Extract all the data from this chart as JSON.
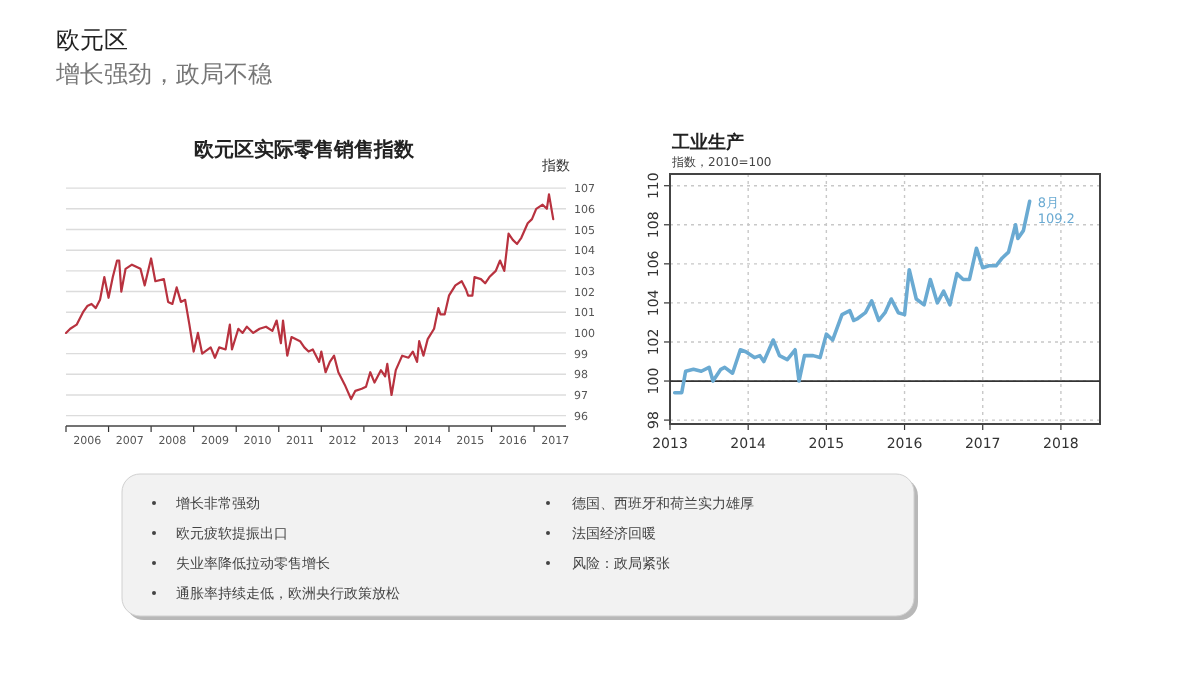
{
  "chart_data": [
    {
      "type": "line",
      "title": "欧元区实际零售销售指数",
      "ylabel": "指数",
      "grid": "y",
      "xlim": [
        2006,
        2017.75
      ],
      "ylim": [
        95.5,
        107.2
      ],
      "xticks": [
        {
          "value": 2006,
          "label": null
        },
        {
          "value": 2006.5,
          "label": "2006"
        },
        {
          "value": 2007,
          "label": null
        },
        {
          "value": 2007.5,
          "label": "2007"
        },
        {
          "value": 2008,
          "label": null
        },
        {
          "value": 2008.5,
          "label": "2008"
        },
        {
          "value": 2009,
          "label": null
        },
        {
          "value": 2009.5,
          "label": "2009"
        },
        {
          "value": 2010,
          "label": null
        },
        {
          "value": 2010.5,
          "label": "2010"
        },
        {
          "value": 2011,
          "label": null
        },
        {
          "value": 2011.5,
          "label": "2011"
        },
        {
          "value": 2012,
          "label": null
        },
        {
          "value": 2012.5,
          "label": "2012"
        },
        {
          "value": 2013,
          "label": null
        },
        {
          "value": 2013.5,
          "label": "2013"
        },
        {
          "value": 2014,
          "label": null
        },
        {
          "value": 2014.5,
          "label": "2014"
        },
        {
          "value": 2015,
          "label": null
        },
        {
          "value": 2015.5,
          "label": "2015"
        },
        {
          "value": 2016,
          "label": null
        },
        {
          "value": 2016.5,
          "label": "2016"
        },
        {
          "value": 2017,
          "label": null
        },
        {
          "value": 2017.5,
          "label": "2017"
        }
      ],
      "yticks": [
        96,
        97,
        98,
        99,
        100,
        101,
        102,
        103,
        104,
        105,
        106,
        107
      ],
      "x": [
        2006.0,
        2006.1,
        2006.25,
        2006.4,
        2006.5,
        2006.6,
        2006.7,
        2006.8,
        2006.9,
        2007.0,
        2007.1,
        2007.2,
        2007.25,
        2007.3,
        2007.4,
        2007.55,
        2007.75,
        2007.85,
        2008.0,
        2008.1,
        2008.3,
        2008.4,
        2008.5,
        2008.6,
        2008.7,
        2008.8,
        2008.9,
        2009.0,
        2009.1,
        2009.2,
        2009.4,
        2009.5,
        2009.6,
        2009.75,
        2009.85,
        2009.9,
        2010.05,
        2010.15,
        2010.25,
        2010.4,
        2010.55,
        2010.7,
        2010.85,
        2010.95,
        2011.05,
        2011.1,
        2011.2,
        2011.3,
        2011.5,
        2011.6,
        2011.7,
        2011.8,
        2011.95,
        2012.0,
        2012.1,
        2012.2,
        2012.3,
        2012.4,
        2012.55,
        2012.7,
        2012.8,
        2012.95,
        2013.05,
        2013.15,
        2013.25,
        2013.4,
        2013.5,
        2013.55,
        2013.65,
        2013.75,
        2013.9,
        2014.05,
        2014.15,
        2014.25,
        2014.3,
        2014.4,
        2014.5,
        2014.65,
        2014.75,
        2014.8,
        2014.9,
        2015.0,
        2015.15,
        2015.3,
        2015.4,
        2015.45,
        2015.55,
        2015.6,
        2015.75,
        2015.85,
        2015.95,
        2016.1,
        2016.2,
        2016.3,
        2016.4,
        2016.5,
        2016.6,
        2016.7,
        2016.85,
        2016.95,
        2017.05,
        2017.2,
        2017.3,
        2017.35,
        2017.45
      ],
      "series": [
        {
          "color": "#b8323f",
          "values": [
            100.0,
            100.2,
            100.4,
            101.0,
            101.3,
            101.4,
            101.2,
            101.6,
            102.7,
            101.7,
            102.7,
            103.5,
            103.5,
            102.0,
            103.1,
            103.3,
            103.1,
            102.3,
            103.6,
            102.5,
            102.6,
            101.5,
            101.4,
            102.2,
            101.5,
            101.6,
            100.4,
            99.1,
            100.0,
            99.0,
            99.3,
            98.8,
            99.3,
            99.2,
            100.4,
            99.2,
            100.2,
            100.0,
            100.3,
            100.0,
            100.2,
            100.3,
            100.1,
            100.6,
            99.5,
            100.6,
            98.9,
            99.8,
            99.6,
            99.3,
            99.1,
            99.2,
            98.6,
            99.1,
            98.1,
            98.6,
            98.9,
            98.1,
            97.5,
            96.8,
            97.2,
            97.3,
            97.4,
            98.1,
            97.6,
            98.2,
            97.9,
            98.5,
            97.0,
            98.2,
            98.9,
            98.8,
            99.1,
            98.6,
            99.6,
            98.9,
            99.7,
            100.2,
            101.2,
            100.9,
            100.9,
            101.8,
            102.3,
            102.5,
            102.1,
            101.8,
            101.8,
            102.7,
            102.6,
            102.4,
            102.7,
            103.0,
            103.5,
            103.0,
            104.8,
            104.5,
            104.3,
            104.6,
            105.3,
            105.5,
            106.0,
            106.2,
            106.0,
            106.7,
            105.5
          ]
        }
      ]
    },
    {
      "type": "line",
      "title": "工业生产",
      "subtitle": "指数，2010=100",
      "grid": true,
      "xlim": [
        2013,
        2018.5
      ],
      "ylim": [
        97.8,
        110.6
      ],
      "xticks": [
        2013,
        2014,
        2015,
        2016,
        2017,
        2018
      ],
      "yticks": [
        98,
        100,
        102,
        104,
        106,
        108,
        110
      ],
      "ref_lines": [
        {
          "axis": "y",
          "value": 100,
          "color": "#333333"
        }
      ],
      "annotations": [
        {
          "text": "8月",
          "x": 2017.6,
          "y": 109.2
        },
        {
          "text": "109.2",
          "x": 2017.6,
          "y": 109.2
        }
      ],
      "x": [
        2013.06,
        2013.15,
        2013.2,
        2013.3,
        2013.4,
        2013.5,
        2013.55,
        2013.65,
        2013.7,
        2013.8,
        2013.9,
        2013.97,
        2014.08,
        2014.15,
        2014.2,
        2014.32,
        2014.4,
        2014.5,
        2014.6,
        2014.65,
        2014.72,
        2014.83,
        2014.92,
        2015.0,
        2015.08,
        2015.2,
        2015.3,
        2015.35,
        2015.4,
        2015.5,
        2015.58,
        2015.67,
        2015.75,
        2015.83,
        2015.92,
        2016.0,
        2016.06,
        2016.15,
        2016.25,
        2016.33,
        2016.42,
        2016.5,
        2016.58,
        2016.67,
        2016.75,
        2016.83,
        2016.92,
        2017.0,
        2017.08,
        2017.17,
        2017.25,
        2017.33,
        2017.42,
        2017.45,
        2017.52,
        2017.6
      ],
      "series": [
        {
          "color": "#6aaad2",
          "values": [
            99.4,
            99.4,
            100.5,
            100.6,
            100.5,
            100.7,
            100.0,
            100.6,
            100.7,
            100.4,
            101.6,
            101.5,
            101.2,
            101.3,
            101.0,
            102.1,
            101.3,
            101.1,
            101.6,
            100.0,
            101.3,
            101.3,
            101.2,
            102.4,
            102.1,
            103.4,
            103.6,
            103.1,
            103.2,
            103.5,
            104.1,
            103.1,
            103.5,
            104.2,
            103.5,
            103.4,
            105.7,
            104.2,
            103.9,
            105.2,
            104.0,
            104.6,
            103.9,
            105.5,
            105.2,
            105.2,
            106.8,
            105.8,
            105.9,
            105.9,
            106.3,
            106.6,
            108.0,
            107.3,
            107.7,
            109.2
          ]
        }
      ]
    },
    {
      "type": "other",
      "title": "欧元区",
      "subtitle": "增长强劲，政局不稳",
      "annotations": [
        "增长非常强劲",
        "欧元疲软提振出口",
        "失业率降低拉动零售增长",
        "通胀率持续走低，欧洲央行政策放松",
        "德国、西班牙和荷兰实力雄厚",
        "法国经济回暖",
        "风险：政局紧张"
      ]
    }
  ]
}
